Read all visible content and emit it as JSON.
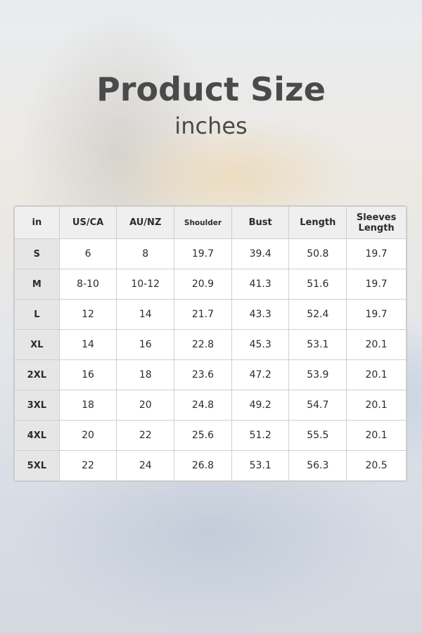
{
  "title": "Product Size",
  "subtitle": "inches",
  "table": {
    "headers": [
      "in",
      "US/CA",
      "AU/NZ",
      "Shoulder",
      "Bust",
      "Length",
      "Sleeves Length"
    ],
    "rows": [
      [
        "S",
        "6",
        "8",
        "19.7",
        "39.4",
        "50.8",
        "19.7"
      ],
      [
        "M",
        "8-10",
        "10-12",
        "20.9",
        "41.3",
        "51.6",
        "19.7"
      ],
      [
        "L",
        "12",
        "14",
        "21.7",
        "43.3",
        "52.4",
        "19.7"
      ],
      [
        "XL",
        "14",
        "16",
        "22.8",
        "45.3",
        "53.1",
        "20.1"
      ],
      [
        "2XL",
        "16",
        "18",
        "23.6",
        "47.2",
        "53.9",
        "20.1"
      ],
      [
        "3XL",
        "18",
        "20",
        "24.8",
        "49.2",
        "54.7",
        "20.1"
      ],
      [
        "4XL",
        "20",
        "22",
        "25.6",
        "51.2",
        "55.5",
        "20.1"
      ],
      [
        "5XL",
        "22",
        "24",
        "26.8",
        "53.1",
        "56.3",
        "20.5"
      ]
    ]
  }
}
